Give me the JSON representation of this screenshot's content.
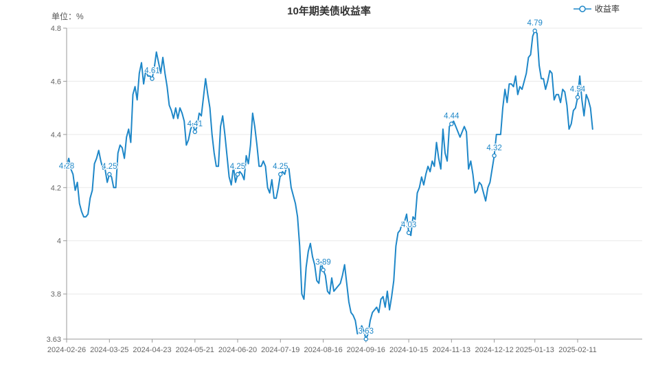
{
  "header": {
    "title": "10年期美债收益率",
    "unit_label": "单位：%",
    "legend_label": "收益率"
  },
  "colors": {
    "series": "#1e87c8",
    "title_text": "#333333",
    "axis_label": "#666666",
    "axis_line": "#999999",
    "grid_line": "#e9e9e9",
    "background": "#ffffff"
  },
  "chart_data": {
    "type": "line",
    "title": "10年期美债收益率",
    "unit": "%",
    "legend": [
      "收益率"
    ],
    "legend_position": "top-right",
    "grid": "horizontal-only",
    "smooth": false,
    "ylim": [
      3.63,
      4.8
    ],
    "y_tick_values": [
      3.63,
      3.8,
      4.0,
      4.2,
      4.4,
      4.6,
      4.8
    ],
    "y_tick_labels": [
      "3.63",
      "3.8",
      "4",
      "4.2",
      "4.4",
      "4.6",
      "4.8"
    ],
    "x_tick_labels": [
      "2024-02-26",
      "2024-03-25",
      "2024-04-23",
      "2024-05-21",
      "2024-06-20",
      "2024-07-19",
      "2024-08-16",
      "2024-09-16",
      "2024-10-15",
      "2024-11-13",
      "2024-12-12",
      "2025-01-13",
      "2025-02-11"
    ],
    "x_tick_indices": [
      0,
      20,
      40,
      60,
      80,
      100,
      120,
      140,
      160,
      180,
      200,
      219,
      239
    ],
    "point_labels": [
      {
        "index": 0,
        "label": "4.28"
      },
      {
        "index": 20,
        "label": "4.25"
      },
      {
        "index": 40,
        "label": "4.61"
      },
      {
        "index": 60,
        "label": "4.41"
      },
      {
        "index": 80,
        "label": "4.25"
      },
      {
        "index": 100,
        "label": "4.25"
      },
      {
        "index": 120,
        "label": "3.89"
      },
      {
        "index": 140,
        "label": "3.63"
      },
      {
        "index": 160,
        "label": "4.03"
      },
      {
        "index": 180,
        "label": "4.44"
      },
      {
        "index": 200,
        "label": "4.32"
      },
      {
        "index": 219,
        "label": "4.79"
      },
      {
        "index": 239,
        "label": "4.54"
      }
    ],
    "series": [
      {
        "name": "收益率",
        "values": [
          4.28,
          4.31,
          4.27,
          4.25,
          4.19,
          4.22,
          4.14,
          4.11,
          4.09,
          4.09,
          4.1,
          4.16,
          4.19,
          4.29,
          4.31,
          4.34,
          4.3,
          4.27,
          4.27,
          4.22,
          4.25,
          4.24,
          4.2,
          4.2,
          4.33,
          4.36,
          4.35,
          4.31,
          4.39,
          4.42,
          4.37,
          4.55,
          4.58,
          4.53,
          4.63,
          4.67,
          4.59,
          4.64,
          4.62,
          4.62,
          4.61,
          4.65,
          4.71,
          4.67,
          4.63,
          4.69,
          4.63,
          4.58,
          4.51,
          4.49,
          4.46,
          4.5,
          4.46,
          4.5,
          4.48,
          4.45,
          4.36,
          4.38,
          4.42,
          4.44,
          4.41,
          4.43,
          4.48,
          4.47,
          4.54,
          4.61,
          4.55,
          4.5,
          4.4,
          4.33,
          4.28,
          4.28,
          4.43,
          4.47,
          4.4,
          4.32,
          4.24,
          4.21,
          4.28,
          4.22,
          4.25,
          4.26,
          4.25,
          4.23,
          4.32,
          4.29,
          4.36,
          4.48,
          4.43,
          4.36,
          4.28,
          4.28,
          4.3,
          4.28,
          4.2,
          4.18,
          4.23,
          4.16,
          4.16,
          4.2,
          4.25,
          4.26,
          4.25,
          4.28,
          4.27,
          4.2,
          4.17,
          4.14,
          4.09,
          3.98,
          3.8,
          3.78,
          3.9,
          3.96,
          3.99,
          3.94,
          3.91,
          3.85,
          3.84,
          3.92,
          3.89,
          3.87,
          3.81,
          3.8,
          3.86,
          3.81,
          3.82,
          3.83,
          3.84,
          3.87,
          3.91,
          3.84,
          3.77,
          3.73,
          3.72,
          3.7,
          3.65,
          3.66,
          3.68,
          3.66,
          3.63,
          3.65,
          3.7,
          3.73,
          3.74,
          3.75,
          3.73,
          3.78,
          3.79,
          3.75,
          3.81,
          3.74,
          3.79,
          3.85,
          3.98,
          4.03,
          4.04,
          4.07,
          4.07,
          4.1,
          4.03,
          4.02,
          4.09,
          4.08,
          4.18,
          4.2,
          4.24,
          4.21,
          4.25,
          4.28,
          4.26,
          4.3,
          4.28,
          4.37,
          4.31,
          4.27,
          4.42,
          4.33,
          4.3,
          4.43,
          4.44,
          4.45,
          4.43,
          4.41,
          4.39,
          4.41,
          4.43,
          4.41,
          4.27,
          4.3,
          4.25,
          4.18,
          4.19,
          4.22,
          4.21,
          4.18,
          4.15,
          4.2,
          4.22,
          4.27,
          4.32,
          4.4,
          4.4,
          4.4,
          4.5,
          4.57,
          4.52,
          4.59,
          4.59,
          4.58,
          4.62,
          4.55,
          4.58,
          4.57,
          4.6,
          4.63,
          4.69,
          4.7,
          4.77,
          4.79,
          4.78,
          4.66,
          4.61,
          4.61,
          4.57,
          4.6,
          4.64,
          4.63,
          4.53,
          4.55,
          4.55,
          4.52,
          4.57,
          4.56,
          4.51,
          4.42,
          4.44,
          4.49,
          4.5,
          4.54,
          4.62,
          4.53,
          4.47,
          4.55,
          4.53,
          4.5,
          4.42
        ]
      }
    ]
  }
}
